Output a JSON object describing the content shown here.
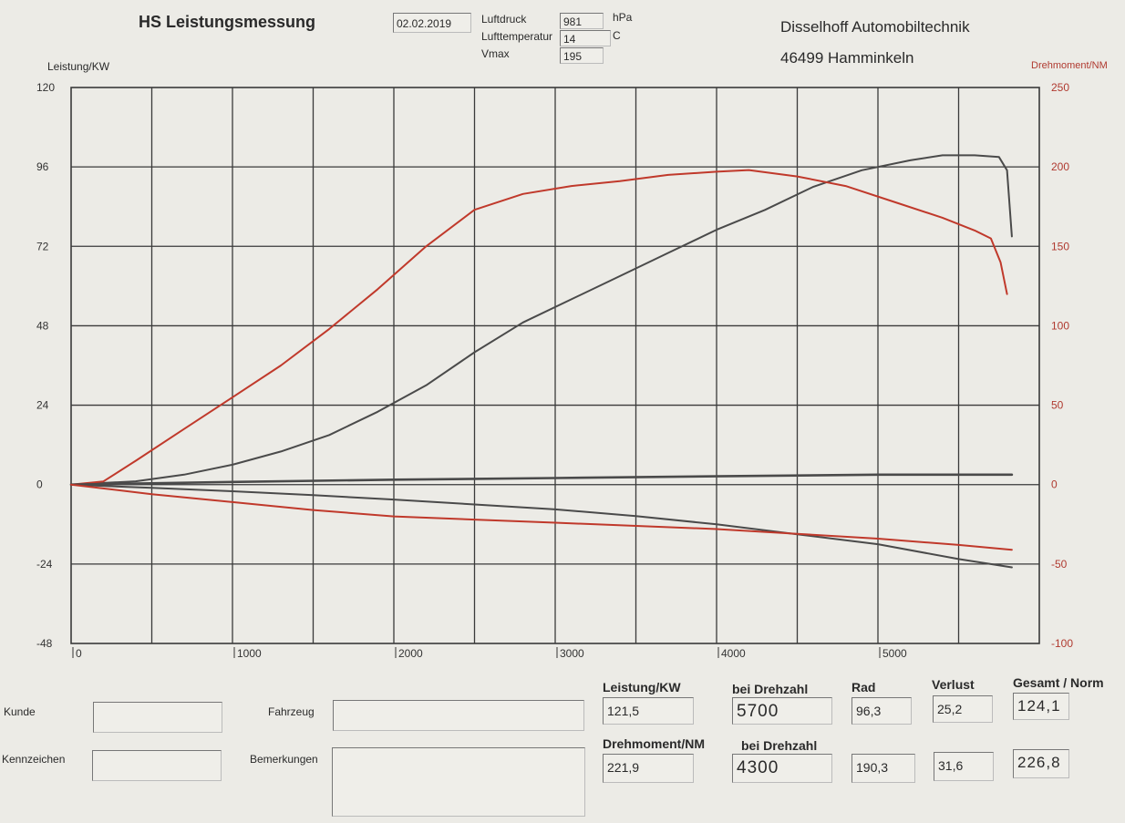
{
  "header": {
    "title": "HS  Leistungsmessung",
    "date": "02.02.2019",
    "luftdruck_label": "Luftdruck",
    "luftdruck_value": "981",
    "luftdruck_unit": "hPa",
    "lufttemperatur_label": "Lufttemperatur",
    "lufttemperatur_value": "14",
    "lufttemperatur_unit": "C",
    "vmax_label": "Vmax",
    "vmax_value": "195",
    "company_name": "Disselhoff Automobiltechnik",
    "company_city": "46499 Hamminkeln"
  },
  "form": {
    "kunde_label": "Kunde",
    "fahrzeug_label": "Fahrzeug",
    "kennzeichen_label": "Kennzeichen",
    "bemerkungen_label": "Bemerkungen"
  },
  "results": {
    "leistung_header": "Leistung/KW",
    "bei_drehzahl_header_1": "bei Drehzahl",
    "rad_header": "Rad",
    "verlust_header": "Verlust",
    "gesamt_header": "Gesamt / Norm",
    "leistung_value": "121,5",
    "leistung_rpm": "5700",
    "leistung_rad": "96,3",
    "leistung_verlust": "25,2",
    "leistung_gesamt": "124,1",
    "drehmoment_header": "Drehmoment/NM",
    "bei_drehzahl_header_2": "bei Drehzahl",
    "drehmoment_value": "221,9",
    "drehmoment_rpm": "4300",
    "drehmoment_rad": "190,3",
    "drehmoment_verlust": "31,6",
    "drehmoment_gesamt": "226,8"
  },
  "colors": {
    "power": "#4a4a4a",
    "torque": "#c0392b",
    "grid": "#3a3a3a"
  },
  "chart_data": {
    "type": "line",
    "title": "",
    "xlabel": "",
    "ylabel": "Leistung/KW",
    "y2label": "Drehmoment/NM",
    "xlim": [
      0,
      6000
    ],
    "ylim": [
      -48,
      120
    ],
    "y2lim": [
      -100,
      250
    ],
    "grid": true,
    "x_ticks": [
      "0",
      "1000",
      "2000",
      "3000",
      "4000",
      "5000"
    ],
    "y_ticks": [
      "120",
      "96",
      "72",
      "48",
      "24",
      "0",
      "-24",
      "-48"
    ],
    "y2_ticks": [
      "250",
      "200",
      "150",
      "100",
      "50",
      "0",
      "-50",
      "-100"
    ],
    "series": [
      {
        "name": "",
        "axis": "left",
        "color": "#4a4a4a",
        "x": [
          0,
          400,
          700,
          1000,
          1300,
          1600,
          1900,
          2200,
          2500,
          2800,
          3100,
          3400,
          3700,
          4000,
          4300,
          4600,
          4900,
          5200,
          5400,
          5600,
          5750,
          5800,
          5830
        ],
        "y": [
          0,
          1,
          3,
          6,
          10,
          15,
          22,
          30,
          40,
          49,
          56,
          63,
          70,
          77,
          83,
          90,
          95,
          98,
          99.5,
          99.5,
          99,
          95,
          75
        ]
      },
      {
        "name": "",
        "axis": "right",
        "color": "#c0392b",
        "x": [
          0,
          200,
          400,
          700,
          1000,
          1300,
          1600,
          1900,
          2200,
          2500,
          2800,
          3100,
          3400,
          3700,
          4000,
          4200,
          4500,
          4800,
          5100,
          5400,
          5600,
          5700,
          5760,
          5800
        ],
        "y": [
          0,
          2,
          15,
          35,
          55,
          75,
          98,
          123,
          150,
          173,
          183,
          188,
          191,
          195,
          197,
          198,
          194,
          188,
          178,
          168,
          160,
          155,
          140,
          120
        ]
      },
      {
        "name": "",
        "axis": "left",
        "color": "#4a4a4a",
        "x": [
          0,
          1000,
          2000,
          3000,
          4000,
          5000,
          5830
        ],
        "y": [
          0,
          0.8,
          1.5,
          2,
          2.5,
          3,
          3
        ]
      },
      {
        "name": "",
        "axis": "left",
        "color": "#4a4a4a",
        "x": [
          0,
          500,
          1000,
          1500,
          2000,
          2500,
          3000,
          3500,
          4000,
          4500,
          5000,
          5500,
          5830
        ],
        "y": [
          0,
          -1,
          -2,
          -3.2,
          -4.5,
          -6,
          -7.5,
          -9.5,
          -12,
          -15,
          -18,
          -22.5,
          -25
        ]
      },
      {
        "name": "",
        "axis": "right",
        "color": "#c0392b",
        "x": [
          0,
          500,
          1000,
          1500,
          2000,
          2500,
          3000,
          3500,
          4000,
          4500,
          5000,
          5500,
          5830
        ],
        "y": [
          0,
          -6,
          -11,
          -16,
          -20,
          -22,
          -24,
          -26,
          -28,
          -31,
          -34,
          -38,
          -41
        ]
      }
    ]
  }
}
